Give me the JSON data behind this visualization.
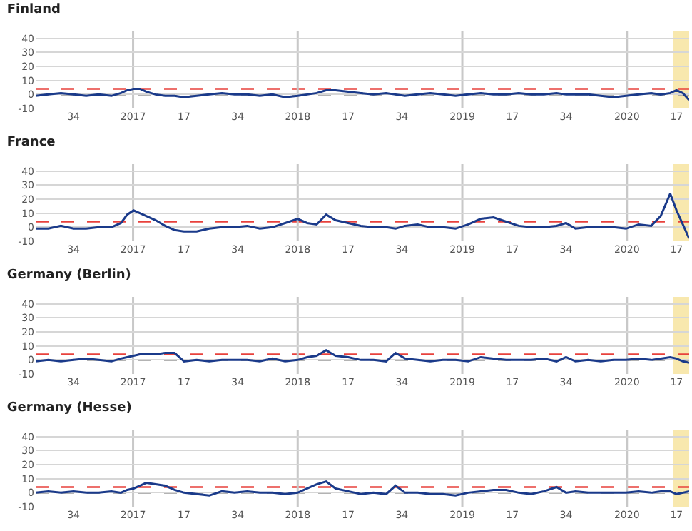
{
  "chart_data": [
    {
      "type": "line",
      "title": "Finland",
      "marker": "none",
      "line_style": "solid",
      "grid": "y",
      "x": [
        "2016-05-30",
        "2016-06-27",
        "2016-07-25",
        "2016-08-22",
        "2016-09-19",
        "2016-10-17",
        "2016-11-14",
        "2016-12-05",
        "2016-12-19",
        "2017-01-02",
        "2017-01-16",
        "2017-01-30",
        "2017-02-20",
        "2017-03-13",
        "2017-04-03",
        "2017-04-24",
        "2017-05-22",
        "2017-06-19",
        "2017-07-17",
        "2017-08-14",
        "2017-09-11",
        "2017-10-09",
        "2017-11-06",
        "2017-12-04",
        "2018-01-01",
        "2018-01-22",
        "2018-02-12",
        "2018-03-05",
        "2018-03-26",
        "2018-04-23",
        "2018-05-21",
        "2018-06-18",
        "2018-07-16",
        "2018-08-06",
        "2018-08-27",
        "2018-09-24",
        "2018-10-22",
        "2018-11-19",
        "2018-12-17",
        "2019-01-14",
        "2019-02-11",
        "2019-03-11",
        "2019-04-08",
        "2019-05-06",
        "2019-06-03",
        "2019-07-01",
        "2019-07-29",
        "2019-08-19",
        "2019-09-09",
        "2019-10-07",
        "2019-11-04",
        "2019-12-02",
        "2019-12-30",
        "2020-01-27",
        "2020-02-24",
        "2020-03-16",
        "2020-04-06",
        "2020-04-20",
        "2020-05-04",
        "2020-05-18"
      ],
      "series": [
        {
          "color": "#1a3a8a",
          "values": [
            -1,
            0,
            1,
            0,
            -1,
            0,
            -1,
            1,
            3,
            4,
            4,
            2,
            0,
            -1,
            -1,
            -2,
            -1,
            0,
            1,
            0,
            0,
            -1,
            0,
            -2,
            -1,
            0,
            1,
            3,
            3,
            2,
            1,
            0,
            1,
            0,
            -1,
            0,
            1,
            0,
            -1,
            0,
            1,
            0,
            0,
            1,
            0,
            0,
            1,
            0,
            0,
            0,
            -1,
            -2,
            -1,
            0,
            1,
            0,
            1,
            3,
            1,
            -4
          ]
        }
      ],
      "xlim": [
        "2016-05-30",
        "2020-05-18"
      ],
      "xticks": [
        {
          "value": "2016-08-22",
          "label": "34"
        },
        {
          "value": "2017-01-01",
          "label": "2017"
        },
        {
          "value": "2017-04-24",
          "label": "17"
        },
        {
          "value": "2017-08-21",
          "label": "34"
        },
        {
          "value": "2018-01-01",
          "label": "2018"
        },
        {
          "value": "2018-04-23",
          "label": "17"
        },
        {
          "value": "2018-08-20",
          "label": "34"
        },
        {
          "value": "2019-01-01",
          "label": "2019"
        },
        {
          "value": "2019-04-22",
          "label": "17"
        },
        {
          "value": "2019-08-19",
          "label": "34"
        },
        {
          "value": "2020-01-01",
          "label": "2020"
        },
        {
          "value": "2020-04-20",
          "label": "17"
        }
      ],
      "ylim": [
        -10,
        45
      ],
      "yticks": [
        -10,
        0,
        10,
        20,
        30,
        40
      ],
      "ref_lines": [
        {
          "axis": "y",
          "value": 4,
          "color": "#e8413c",
          "line_style": "dashed"
        },
        {
          "axis": "y",
          "value": 0,
          "color": "#9a9a9a",
          "line_style": "dashed"
        },
        {
          "axis": "x",
          "value": "2017-01-01",
          "color": "#c8c8c8",
          "line_style": "solid"
        },
        {
          "axis": "x",
          "value": "2018-01-01",
          "color": "#c8c8c8",
          "line_style": "solid"
        },
        {
          "axis": "x",
          "value": "2019-01-01",
          "color": "#c8c8c8",
          "line_style": "solid"
        },
        {
          "axis": "x",
          "value": "2020-01-01",
          "color": "#c8c8c8",
          "line_style": "solid"
        }
      ],
      "bands": [
        {
          "axis": "x",
          "from": "2020-04-13",
          "to": "2020-05-18",
          "color": "#f6e29a"
        }
      ]
    },
    {
      "type": "line",
      "title": "France",
      "marker": "none",
      "line_style": "solid",
      "grid": "y",
      "x": [
        "2016-05-30",
        "2016-06-27",
        "2016-07-25",
        "2016-08-22",
        "2016-09-19",
        "2016-10-17",
        "2016-11-14",
        "2016-12-05",
        "2016-12-19",
        "2017-01-02",
        "2017-01-16",
        "2017-01-30",
        "2017-02-20",
        "2017-03-13",
        "2017-04-03",
        "2017-04-24",
        "2017-05-22",
        "2017-06-19",
        "2017-07-17",
        "2017-08-14",
        "2017-09-11",
        "2017-10-09",
        "2017-11-06",
        "2017-12-04",
        "2018-01-01",
        "2018-01-22",
        "2018-02-12",
        "2018-03-05",
        "2018-03-26",
        "2018-04-23",
        "2018-05-21",
        "2018-06-18",
        "2018-07-16",
        "2018-08-06",
        "2018-08-27",
        "2018-09-24",
        "2018-10-22",
        "2018-11-19",
        "2018-12-17",
        "2019-01-14",
        "2019-02-11",
        "2019-03-11",
        "2019-04-08",
        "2019-05-06",
        "2019-06-03",
        "2019-07-01",
        "2019-07-29",
        "2019-08-19",
        "2019-09-09",
        "2019-10-07",
        "2019-11-04",
        "2019-12-02",
        "2019-12-30",
        "2020-01-27",
        "2020-02-24",
        "2020-03-16",
        "2020-04-06",
        "2020-04-20",
        "2020-05-04",
        "2020-05-18"
      ],
      "series": [
        {
          "color": "#1a3a8a",
          "values": [
            -1,
            -1,
            1,
            -1,
            -1,
            0,
            0,
            3,
            9,
            12,
            10,
            8,
            5,
            1,
            -2,
            -3,
            -3,
            -1,
            0,
            0,
            1,
            -1,
            0,
            3,
            6,
            3,
            2,
            9,
            5,
            3,
            1,
            0,
            0,
            -1,
            1,
            2,
            0,
            0,
            -1,
            2,
            6,
            7,
            4,
            1,
            0,
            0,
            1,
            3,
            -1,
            0,
            0,
            0,
            -1,
            2,
            1,
            8,
            24,
            12,
            2,
            -8
          ]
        }
      ],
      "xlim": [
        "2016-05-30",
        "2020-05-18"
      ],
      "xticks": [
        {
          "value": "2016-08-22",
          "label": "34"
        },
        {
          "value": "2017-01-01",
          "label": "2017"
        },
        {
          "value": "2017-04-24",
          "label": "17"
        },
        {
          "value": "2017-08-21",
          "label": "34"
        },
        {
          "value": "2018-01-01",
          "label": "2018"
        },
        {
          "value": "2018-04-23",
          "label": "17"
        },
        {
          "value": "2018-08-20",
          "label": "34"
        },
        {
          "value": "2019-01-01",
          "label": "2019"
        },
        {
          "value": "2019-04-22",
          "label": "17"
        },
        {
          "value": "2019-08-19",
          "label": "34"
        },
        {
          "value": "2020-01-01",
          "label": "2020"
        },
        {
          "value": "2020-04-20",
          "label": "17"
        }
      ],
      "ylim": [
        -10,
        45
      ],
      "yticks": [
        -10,
        0,
        10,
        20,
        30,
        40
      ],
      "ref_lines": [
        {
          "axis": "y",
          "value": 4,
          "color": "#e8413c",
          "line_style": "dashed"
        },
        {
          "axis": "y",
          "value": 0,
          "color": "#9a9a9a",
          "line_style": "dashed"
        },
        {
          "axis": "x",
          "value": "2017-01-01",
          "color": "#c8c8c8",
          "line_style": "solid"
        },
        {
          "axis": "x",
          "value": "2018-01-01",
          "color": "#c8c8c8",
          "line_style": "solid"
        },
        {
          "axis": "x",
          "value": "2019-01-01",
          "color": "#c8c8c8",
          "line_style": "solid"
        },
        {
          "axis": "x",
          "value": "2020-01-01",
          "color": "#c8c8c8",
          "line_style": "solid"
        }
      ],
      "bands": [
        {
          "axis": "x",
          "from": "2020-04-13",
          "to": "2020-05-18",
          "color": "#f6e29a"
        }
      ]
    },
    {
      "type": "line",
      "title": "Germany (Berlin)",
      "marker": "none",
      "line_style": "solid",
      "grid": "y",
      "x": [
        "2016-05-30",
        "2016-06-27",
        "2016-07-25",
        "2016-08-22",
        "2016-09-19",
        "2016-10-17",
        "2016-11-14",
        "2016-12-05",
        "2016-12-19",
        "2017-01-02",
        "2017-01-16",
        "2017-01-30",
        "2017-02-20",
        "2017-03-13",
        "2017-04-03",
        "2017-04-24",
        "2017-05-22",
        "2017-06-19",
        "2017-07-17",
        "2017-08-14",
        "2017-09-11",
        "2017-10-09",
        "2017-11-06",
        "2017-12-04",
        "2018-01-01",
        "2018-01-22",
        "2018-02-12",
        "2018-03-05",
        "2018-03-26",
        "2018-04-23",
        "2018-05-21",
        "2018-06-18",
        "2018-07-16",
        "2018-08-06",
        "2018-08-27",
        "2018-09-24",
        "2018-10-22",
        "2018-11-19",
        "2018-12-17",
        "2019-01-14",
        "2019-02-11",
        "2019-03-11",
        "2019-04-08",
        "2019-05-06",
        "2019-06-03",
        "2019-07-01",
        "2019-07-29",
        "2019-08-19",
        "2019-09-09",
        "2019-10-07",
        "2019-11-04",
        "2019-12-02",
        "2019-12-30",
        "2020-01-27",
        "2020-02-24",
        "2020-03-16",
        "2020-04-06",
        "2020-04-20",
        "2020-05-04",
        "2020-05-18"
      ],
      "series": [
        {
          "color": "#1a3a8a",
          "values": [
            -1,
            0,
            -1,
            0,
            1,
            0,
            -1,
            1,
            2,
            3,
            4,
            4,
            4,
            5,
            5,
            -1,
            0,
            -1,
            0,
            0,
            0,
            -1,
            1,
            -1,
            0,
            2,
            3,
            7,
            3,
            2,
            0,
            0,
            -1,
            5,
            1,
            0,
            -1,
            0,
            0,
            -1,
            2,
            1,
            0,
            0,
            0,
            1,
            -1,
            2,
            -1,
            0,
            -1,
            0,
            0,
            1,
            0,
            1,
            2,
            1,
            -1,
            -2
          ]
        }
      ],
      "xlim": [
        "2016-05-30",
        "2020-05-18"
      ],
      "xticks": [
        {
          "value": "2016-08-22",
          "label": "34"
        },
        {
          "value": "2017-01-01",
          "label": "2017"
        },
        {
          "value": "2017-04-24",
          "label": "17"
        },
        {
          "value": "2017-08-21",
          "label": "34"
        },
        {
          "value": "2018-01-01",
          "label": "2018"
        },
        {
          "value": "2018-04-23",
          "label": "17"
        },
        {
          "value": "2018-08-20",
          "label": "34"
        },
        {
          "value": "2019-01-01",
          "label": "2019"
        },
        {
          "value": "2019-04-22",
          "label": "17"
        },
        {
          "value": "2019-08-19",
          "label": "34"
        },
        {
          "value": "2020-01-01",
          "label": "2020"
        },
        {
          "value": "2020-04-20",
          "label": "17"
        }
      ],
      "ylim": [
        -10,
        45
      ],
      "yticks": [
        -10,
        0,
        10,
        20,
        30,
        40
      ],
      "ref_lines": [
        {
          "axis": "y",
          "value": 4,
          "color": "#e8413c",
          "line_style": "dashed"
        },
        {
          "axis": "y",
          "value": 0,
          "color": "#9a9a9a",
          "line_style": "dashed"
        },
        {
          "axis": "x",
          "value": "2017-01-01",
          "color": "#c8c8c8",
          "line_style": "solid"
        },
        {
          "axis": "x",
          "value": "2018-01-01",
          "color": "#c8c8c8",
          "line_style": "solid"
        },
        {
          "axis": "x",
          "value": "2019-01-01",
          "color": "#c8c8c8",
          "line_style": "solid"
        },
        {
          "axis": "x",
          "value": "2020-01-01",
          "color": "#c8c8c8",
          "line_style": "solid"
        }
      ],
      "bands": [
        {
          "axis": "x",
          "from": "2020-04-13",
          "to": "2020-05-18",
          "color": "#f6e29a"
        }
      ]
    },
    {
      "type": "line",
      "title": "Germany (Hesse)",
      "marker": "none",
      "line_style": "solid",
      "grid": "y",
      "x": [
        "2016-05-30",
        "2016-06-27",
        "2016-07-25",
        "2016-08-22",
        "2016-09-19",
        "2016-10-17",
        "2016-11-14",
        "2016-12-05",
        "2016-12-19",
        "2017-01-02",
        "2017-01-16",
        "2017-01-30",
        "2017-02-20",
        "2017-03-13",
        "2017-04-03",
        "2017-04-24",
        "2017-05-22",
        "2017-06-19",
        "2017-07-17",
        "2017-08-14",
        "2017-09-11",
        "2017-10-09",
        "2017-11-06",
        "2017-12-04",
        "2018-01-01",
        "2018-01-22",
        "2018-02-12",
        "2018-03-05",
        "2018-03-26",
        "2018-04-23",
        "2018-05-21",
        "2018-06-18",
        "2018-07-16",
        "2018-08-06",
        "2018-08-27",
        "2018-09-24",
        "2018-10-22",
        "2018-11-19",
        "2018-12-17",
        "2019-01-14",
        "2019-02-11",
        "2019-03-11",
        "2019-04-08",
        "2019-05-06",
        "2019-06-03",
        "2019-07-01",
        "2019-07-29",
        "2019-08-19",
        "2019-09-09",
        "2019-10-07",
        "2019-11-04",
        "2019-12-02",
        "2019-12-30",
        "2020-01-27",
        "2020-02-24",
        "2020-03-16",
        "2020-04-06",
        "2020-04-20",
        "2020-05-04",
        "2020-05-18"
      ],
      "series": [
        {
          "color": "#1a3a8a",
          "values": [
            0,
            1,
            0,
            1,
            0,
            0,
            1,
            0,
            2,
            3,
            5,
            7,
            6,
            5,
            2,
            0,
            -1,
            -2,
            1,
            0,
            1,
            0,
            0,
            -1,
            0,
            3,
            6,
            8,
            3,
            1,
            -1,
            0,
            -1,
            5,
            0,
            0,
            -1,
            -1,
            -2,
            0,
            1,
            2,
            2,
            0,
            -1,
            1,
            4,
            0,
            1,
            0,
            0,
            0,
            0,
            1,
            0,
            1,
            1,
            -1,
            0,
            1
          ]
        }
      ],
      "xlim": [
        "2016-05-30",
        "2020-05-18"
      ],
      "xticks": [
        {
          "value": "2016-08-22",
          "label": "34"
        },
        {
          "value": "2017-01-01",
          "label": "2017"
        },
        {
          "value": "2017-04-24",
          "label": "17"
        },
        {
          "value": "2017-08-21",
          "label": "34"
        },
        {
          "value": "2018-01-01",
          "label": "2018"
        },
        {
          "value": "2018-04-23",
          "label": "17"
        },
        {
          "value": "2018-08-20",
          "label": "34"
        },
        {
          "value": "2019-01-01",
          "label": "2019"
        },
        {
          "value": "2019-04-22",
          "label": "17"
        },
        {
          "value": "2019-08-19",
          "label": "34"
        },
        {
          "value": "2020-01-01",
          "label": "2020"
        },
        {
          "value": "2020-04-20",
          "label": "17"
        }
      ],
      "ylim": [
        -10,
        45
      ],
      "yticks": [
        -10,
        0,
        10,
        20,
        30,
        40
      ],
      "ref_lines": [
        {
          "axis": "y",
          "value": 4,
          "color": "#e8413c",
          "line_style": "dashed"
        },
        {
          "axis": "y",
          "value": 0,
          "color": "#9a9a9a",
          "line_style": "dashed"
        },
        {
          "axis": "x",
          "value": "2017-01-01",
          "color": "#c8c8c8",
          "line_style": "solid"
        },
        {
          "axis": "x",
          "value": "2018-01-01",
          "color": "#c8c8c8",
          "line_style": "solid"
        },
        {
          "axis": "x",
          "value": "2019-01-01",
          "color": "#c8c8c8",
          "line_style": "solid"
        },
        {
          "axis": "x",
          "value": "2020-01-01",
          "color": "#c8c8c8",
          "line_style": "solid"
        }
      ],
      "bands": [
        {
          "axis": "x",
          "from": "2020-04-13",
          "to": "2020-05-18",
          "color": "#f6e29a"
        }
      ]
    }
  ]
}
